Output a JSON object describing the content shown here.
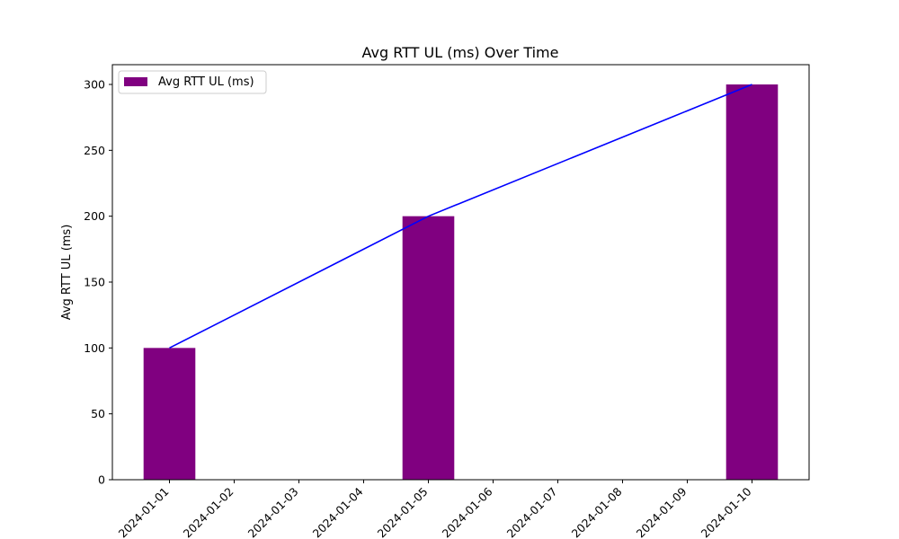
{
  "chart_data": {
    "type": "bar",
    "title": "Avg RTT UL (ms) Over Time",
    "xlabel": "",
    "ylabel": "Avg RTT UL (ms)",
    "x_ticks": [
      "2024-01-01",
      "2024-01-02",
      "2024-01-03",
      "2024-01-04",
      "2024-01-05",
      "2024-01-06",
      "2024-01-07",
      "2024-01-08",
      "2024-01-09",
      "2024-01-10"
    ],
    "y_ticks": [
      0,
      50,
      100,
      150,
      200,
      250,
      300
    ],
    "ylim": [
      0,
      315
    ],
    "x_range": [
      "2023-12-31",
      "2024-01-10"
    ],
    "bars": [
      {
        "date": "2024-01-01",
        "value": 100
      },
      {
        "date": "2024-01-05",
        "value": 200
      },
      {
        "date": "2024-01-10",
        "value": 300
      }
    ],
    "line": [
      {
        "date": "2024-01-01",
        "value": 100
      },
      {
        "date": "2024-01-05",
        "value": 200
      },
      {
        "date": "2024-01-10",
        "value": 300
      }
    ],
    "bar_color": "#800080",
    "line_color": "#0000ff",
    "legend": {
      "label": "Avg RTT UL (ms)",
      "position": "top-left"
    },
    "grid": false
  }
}
